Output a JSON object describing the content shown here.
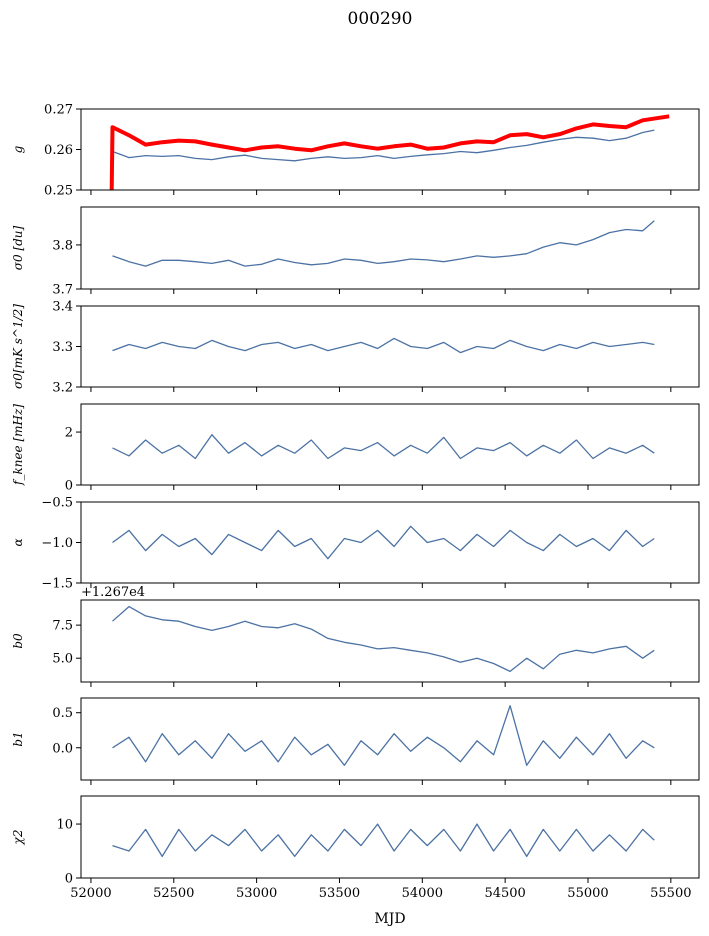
{
  "chart_data": {
    "type": "line",
    "title": "000290",
    "xlabel": "MJD",
    "xlim": [
      51940,
      55670
    ],
    "xticks": [
      52000,
      52500,
      53000,
      53500,
      54000,
      54500,
      55000,
      55500
    ],
    "x": [
      52130,
      52230,
      52330,
      52430,
      52530,
      52630,
      52730,
      52830,
      52930,
      53030,
      53130,
      53230,
      53330,
      53430,
      53530,
      53630,
      53730,
      53830,
      53930,
      54030,
      54130,
      54230,
      54330,
      54430,
      54530,
      54630,
      54730,
      54830,
      54930,
      55030,
      55130,
      55230,
      55330,
      55400
    ],
    "colors": {
      "series": "#4c72a4",
      "model": "#ff0000"
    },
    "panels": [
      {
        "ylabel": "g",
        "ylim": [
          0.25,
          0.27
        ],
        "yticks": [
          "0.25",
          "0.26",
          "0.27"
        ],
        "ytick_values": [
          0.25,
          0.26,
          0.27
        ],
        "series": [
          {
            "name": "g",
            "values": [
              0.2595,
              0.258,
              0.2585,
              0.2583,
              0.2585,
              0.2578,
              0.2575,
              0.2582,
              0.2586,
              0.2578,
              0.2575,
              0.2572,
              0.2578,
              0.2582,
              0.2578,
              0.258,
              0.2585,
              0.2578,
              0.2583,
              0.2587,
              0.259,
              0.2595,
              0.2592,
              0.2598,
              0.2605,
              0.261,
              0.2618,
              0.2625,
              0.263,
              0.2628,
              0.2622,
              0.2628,
              0.2642,
              0.2648
            ]
          },
          {
            "name": "g model",
            "color": "red",
            "x": [
              52125,
              52130,
              52230,
              52330,
              52430,
              52530,
              52630,
              52730,
              52830,
              52930,
              53030,
              53130,
              53230,
              53330,
              53430,
              53530,
              53630,
              53730,
              53830,
              53930,
              54030,
              54130,
              54230,
              54330,
              54430,
              54530,
              54630,
              54730,
              54830,
              54930,
              55030,
              55130,
              55230,
              55330,
              55490
            ],
            "values": [
              0.25,
              0.2655,
              0.2635,
              0.2612,
              0.2618,
              0.2622,
              0.262,
              0.2612,
              0.2605,
              0.2598,
              0.2605,
              0.2608,
              0.2602,
              0.2598,
              0.2608,
              0.2615,
              0.2608,
              0.2602,
              0.2608,
              0.2612,
              0.2602,
              0.2605,
              0.2615,
              0.262,
              0.2618,
              0.2635,
              0.2638,
              0.263,
              0.2638,
              0.2652,
              0.2662,
              0.2658,
              0.2655,
              0.2672,
              0.2682
            ]
          }
        ]
      },
      {
        "ylabel": "σ0 [du]",
        "ylim": [
          3.7,
          3.886
        ],
        "yticks": [
          "3.7",
          "3.8"
        ],
        "ytick_values": [
          3.7,
          3.8
        ],
        "series": [
          {
            "name": "sigma0_du",
            "values": [
              3.775,
              3.762,
              3.752,
              3.765,
              3.765,
              3.762,
              3.758,
              3.765,
              3.752,
              3.756,
              3.768,
              3.76,
              3.755,
              3.758,
              3.768,
              3.765,
              3.758,
              3.762,
              3.768,
              3.766,
              3.762,
              3.768,
              3.775,
              3.772,
              3.775,
              3.78,
              3.795,
              3.805,
              3.8,
              3.812,
              3.828,
              3.835,
              3.832,
              3.855
            ]
          }
        ]
      },
      {
        "ylabel": "σ0[mK s^1/2]",
        "ylim": [
          3.2,
          3.4
        ],
        "yticks": [
          "3.2",
          "3.3",
          "3.4"
        ],
        "ytick_values": [
          3.2,
          3.3,
          3.4
        ],
        "series": [
          {
            "name": "sigma0_mK",
            "values": [
              3.29,
              3.305,
              3.295,
              3.31,
              3.3,
              3.295,
              3.315,
              3.3,
              3.29,
              3.305,
              3.31,
              3.295,
              3.305,
              3.29,
              3.3,
              3.31,
              3.295,
              3.32,
              3.3,
              3.295,
              3.31,
              3.285,
              3.3,
              3.295,
              3.315,
              3.3,
              3.29,
              3.305,
              3.295,
              3.31,
              3.3,
              3.305,
              3.31,
              3.305
            ]
          }
        ]
      },
      {
        "ylabel": "f_knee [mHz]",
        "ylim": [
          0,
          3.06
        ],
        "yticks": [
          "0",
          "2"
        ],
        "ytick_values": [
          0,
          2
        ],
        "series": [
          {
            "name": "fknee",
            "values": [
              1.4,
              1.1,
              1.7,
              1.2,
              1.5,
              1.0,
              1.9,
              1.2,
              1.6,
              1.1,
              1.5,
              1.2,
              1.7,
              1.0,
              1.4,
              1.3,
              1.6,
              1.1,
              1.5,
              1.2,
              1.8,
              1.0,
              1.4,
              1.3,
              1.6,
              1.1,
              1.5,
              1.2,
              1.7,
              1.0,
              1.4,
              1.2,
              1.5,
              1.2
            ]
          }
        ]
      },
      {
        "ylabel": "α",
        "ylim": [
          -1.5,
          -0.5
        ],
        "yticks": [
          "−1.5",
          "−1.0",
          "−0.5"
        ],
        "ytick_values": [
          -1.5,
          -1.0,
          -0.5
        ],
        "series": [
          {
            "name": "alpha",
            "values": [
              -1.0,
              -0.85,
              -1.1,
              -0.9,
              -1.05,
              -0.95,
              -1.15,
              -0.9,
              -1.0,
              -1.1,
              -0.85,
              -1.05,
              -0.95,
              -1.2,
              -0.95,
              -1.0,
              -0.85,
              -1.05,
              -0.8,
              -1.0,
              -0.95,
              -1.1,
              -0.9,
              -1.05,
              -0.85,
              -1.0,
              -1.1,
              -0.9,
              -1.05,
              -0.95,
              -1.1,
              -0.85,
              -1.05,
              -0.95
            ]
          }
        ]
      },
      {
        "ylabel": "b0",
        "offset_label": "+1.267e4",
        "ylim": [
          3.2,
          9.4
        ],
        "yticks": [
          "5.0",
          "7.5"
        ],
        "ytick_values": [
          5.0,
          7.5
        ],
        "series": [
          {
            "name": "b0",
            "values": [
              7.8,
              8.9,
              8.2,
              7.9,
              7.8,
              7.4,
              7.1,
              7.4,
              7.8,
              7.4,
              7.3,
              7.6,
              7.2,
              6.5,
              6.2,
              6.0,
              5.7,
              5.8,
              5.6,
              5.4,
              5.1,
              4.7,
              5.0,
              4.6,
              4.0,
              5.0,
              4.2,
              5.3,
              5.6,
              5.4,
              5.7,
              5.9,
              5.0,
              5.6
            ]
          }
        ]
      },
      {
        "ylabel": "b1",
        "ylim": [
          -0.46,
          0.71
        ],
        "yticks": [
          "0.0",
          "0.5"
        ],
        "ytick_values": [
          0,
          0.5
        ],
        "series": [
          {
            "name": "b1",
            "values": [
              0.0,
              0.15,
              -0.2,
              0.2,
              -0.1,
              0.1,
              -0.15,
              0.2,
              -0.05,
              0.1,
              -0.2,
              0.15,
              -0.1,
              0.05,
              -0.25,
              0.1,
              -0.1,
              0.2,
              -0.05,
              0.15,
              0.0,
              -0.2,
              0.1,
              -0.1,
              0.6,
              -0.25,
              0.1,
              -0.15,
              0.15,
              -0.1,
              0.2,
              -0.15,
              0.1,
              0.0
            ]
          }
        ]
      },
      {
        "ylabel": "χ2",
        "ylim": [
          0,
          15.2
        ],
        "yticks": [
          "0",
          "10"
        ],
        "ytick_values": [
          0,
          10
        ],
        "series": [
          {
            "name": "chi2",
            "values": [
              6,
              5,
              9,
              4,
              9,
              5,
              8,
              6,
              9,
              5,
              8,
              4,
              8,
              5,
              9,
              6,
              10,
              5,
              9,
              6,
              9,
              5,
              10,
              5,
              9,
              4,
              9,
              5,
              9,
              5,
              8,
              5,
              9,
              7
            ]
          }
        ]
      }
    ]
  }
}
